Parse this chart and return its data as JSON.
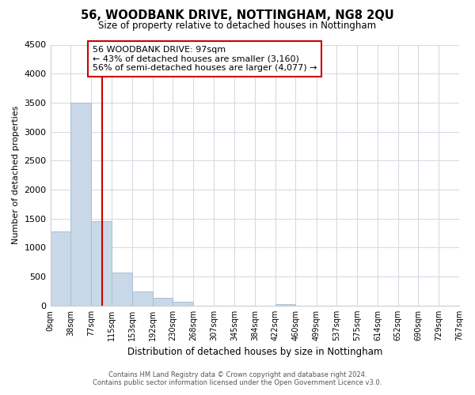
{
  "title": "56, WOODBANK DRIVE, NOTTINGHAM, NG8 2QU",
  "subtitle": "Size of property relative to detached houses in Nottingham",
  "xlabel": "Distribution of detached houses by size in Nottingham",
  "ylabel": "Number of detached properties",
  "bar_color": "#c8d8e8",
  "bar_edge_color": "#a8bfcf",
  "vline_color": "#cc0000",
  "vline_x": 97,
  "bin_edges": [
    0,
    38,
    77,
    115,
    153,
    192,
    230,
    268,
    307,
    345,
    384,
    422,
    460,
    499,
    537,
    575,
    614,
    652,
    690,
    729,
    767
  ],
  "bar_heights": [
    1280,
    3500,
    1460,
    570,
    240,
    130,
    70,
    0,
    0,
    0,
    0,
    30,
    0,
    0,
    0,
    0,
    0,
    0,
    0,
    0
  ],
  "tick_labels": [
    "0sqm",
    "38sqm",
    "77sqm",
    "115sqm",
    "153sqm",
    "192sqm",
    "230sqm",
    "268sqm",
    "307sqm",
    "345sqm",
    "384sqm",
    "422sqm",
    "460sqm",
    "499sqm",
    "537sqm",
    "575sqm",
    "614sqm",
    "652sqm",
    "690sqm",
    "729sqm",
    "767sqm"
  ],
  "ylim": [
    0,
    4500
  ],
  "yticks": [
    0,
    500,
    1000,
    1500,
    2000,
    2500,
    3000,
    3500,
    4000,
    4500
  ],
  "annotation_title": "56 WOODBANK DRIVE: 97sqm",
  "annotation_line1": "← 43% of detached houses are smaller (3,160)",
  "annotation_line2": "56% of semi-detached houses are larger (4,077) →",
  "annotation_box_color": "#ffffff",
  "annotation_box_edge": "#cc0000",
  "footer_line1": "Contains HM Land Registry data © Crown copyright and database right 2024.",
  "footer_line2": "Contains public sector information licensed under the Open Government Licence v3.0.",
  "background_color": "#ffffff",
  "grid_color": "#d0d8e0"
}
